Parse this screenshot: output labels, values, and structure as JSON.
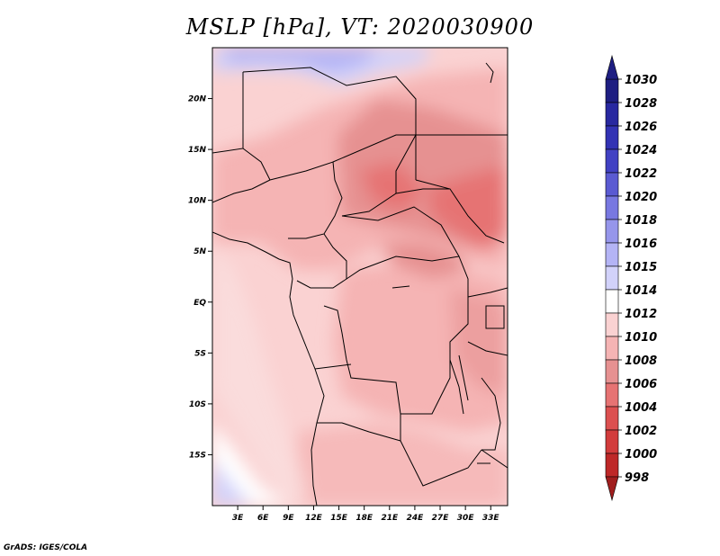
{
  "title": "MSLP [hPa], VT: 2020030900",
  "credit": "GrADS: IGES/COLA",
  "map": {
    "lon_range": [
      0,
      35
    ],
    "lat_range": [
      -20,
      25
    ],
    "lon_ticks": [
      "3E",
      "6E",
      "9E",
      "12E",
      "15E",
      "18E",
      "21E",
      "24E",
      "27E",
      "30E",
      "33E"
    ],
    "lat_ticks": [
      "20N",
      "15N",
      "10N",
      "5N",
      "EQ",
      "5S",
      "10S",
      "15S"
    ]
  },
  "colorbar": {
    "levels": [
      "1030",
      "1028",
      "1026",
      "1024",
      "1022",
      "1020",
      "1018",
      "1016",
      "1015",
      "1014",
      "1012",
      "1010",
      "1008",
      "1006",
      "1004",
      "1002",
      "1000",
      "998"
    ],
    "colors": [
      "#1e1e82",
      "#2828a0",
      "#3232b4",
      "#4141c3",
      "#5a5ad2",
      "#7878e1",
      "#9696eb",
      "#b4b4f5",
      "#d2d2fa",
      "#ffffff",
      "#fad2d2",
      "#f5b4b4",
      "#e69191",
      "#e67373",
      "#dc5050",
      "#d23c3c",
      "#be2828",
      "#a01e1e"
    ]
  }
}
